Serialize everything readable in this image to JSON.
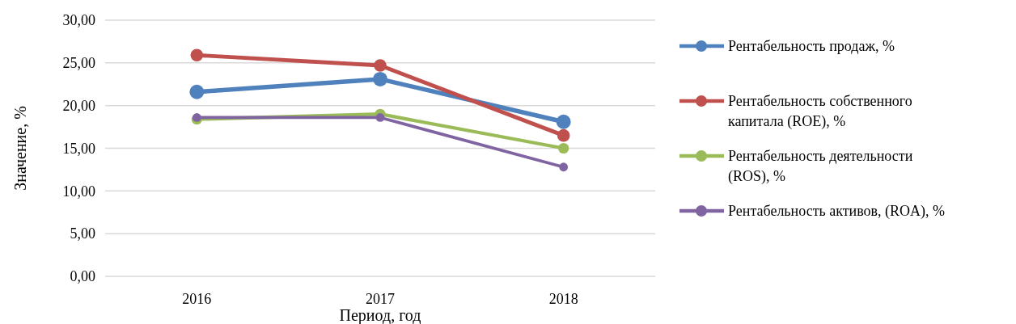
{
  "chart_data": {
    "type": "line",
    "xlabel": "Период, год",
    "ylabel": "Значение, %",
    "categories": [
      "2016",
      "2017",
      "2018"
    ],
    "series": [
      {
        "name": "Рентабельность продаж, %",
        "color": "#4f81bd",
        "values": [
          21.6,
          23.1,
          18.1
        ]
      },
      {
        "name": "Рентабельность собственного капитала (ROE), %",
        "color": "#c0504d",
        "values": [
          25.9,
          24.7,
          16.5
        ]
      },
      {
        "name": "Рентабельность деятельности (ROS), %",
        "color": "#9bbb59",
        "values": [
          18.4,
          19.0,
          15.0
        ]
      },
      {
        "name": "Рентабельность активов, (ROA), %",
        "color": "#8064a2",
        "values": [
          18.6,
          18.6,
          12.8
        ]
      }
    ],
    "ylim": [
      0,
      30
    ],
    "yticks": [
      {
        "value": 0,
        "label": "0,00"
      },
      {
        "value": 5,
        "label": "5,00"
      },
      {
        "value": 10,
        "label": "10,00"
      },
      {
        "value": 15,
        "label": "15,00"
      },
      {
        "value": 20,
        "label": "20,00"
      },
      {
        "value": 25,
        "label": "25,00"
      },
      {
        "value": 30,
        "label": "30,00"
      }
    ],
    "grid": "y",
    "legend": "right",
    "marker": "circle",
    "line_style": "solid"
  }
}
